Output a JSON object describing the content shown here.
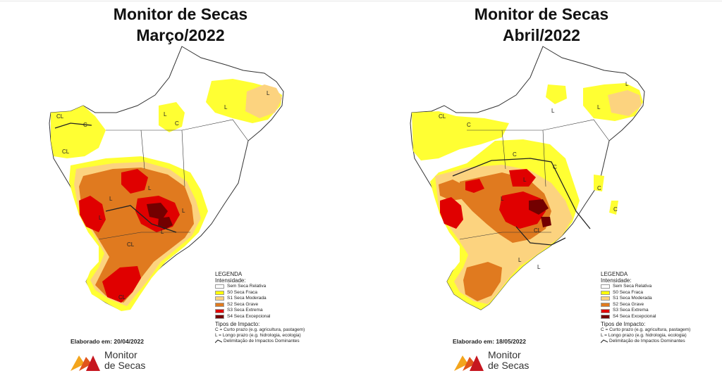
{
  "panels": [
    {
      "title_line1": "Monitor de Secas",
      "title_line2": "Março/2022",
      "elaborado": "Elaborado em: 20/04/2022",
      "map_labels": [
        "CL",
        "C",
        "CL",
        "L",
        "L",
        "L",
        "C",
        "L",
        "L",
        "L",
        "L",
        "L",
        "CL",
        "CL"
      ]
    },
    {
      "title_line1": "Monitor de Secas",
      "title_line2": "Abril/2022",
      "elaborado": "Elaborado em: 18/05/2022",
      "map_labels": [
        "CL",
        "C",
        "L",
        "L",
        "L",
        "C",
        "C",
        "C",
        "C",
        "L",
        "L",
        "CL",
        "L",
        "L"
      ]
    }
  ],
  "legend": {
    "title": "LEGENDA",
    "intensity_title": "Intensidade:",
    "items": [
      {
        "label": "Sem Seca Relativa",
        "color": "#ffffff"
      },
      {
        "label": "S0 Seca Fraca",
        "color": "#ffff00"
      },
      {
        "label": "S1 Seca Moderada",
        "color": "#fcd37f"
      },
      {
        "label": "S2 Seca Grave",
        "color": "#e07a1f"
      },
      {
        "label": "S3 Seca Extrema",
        "color": "#e00000"
      },
      {
        "label": "S4 Seca Excepcional",
        "color": "#730000"
      }
    ],
    "impact_title": "Tipos de Impacto:",
    "impact_c": "C = Curto prazo (e.g. agricultura, pastagem)",
    "impact_l": "L = Longo prazo (e.g. hidrologia, ecologia)",
    "impact_line": "Delimitação de Impactos Dominantes"
  },
  "logo": {
    "line1": "Monitor",
    "line2": "de Secas",
    "colors": [
      "#f3a51d",
      "#e0551b",
      "#c6161f"
    ]
  }
}
